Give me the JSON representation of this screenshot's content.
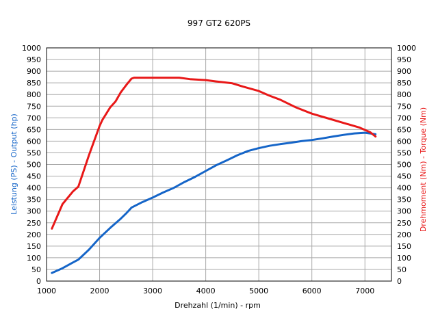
{
  "chart_data": {
    "type": "line",
    "title": "997 GT2 620PS",
    "xlabel": "Drehzahl (1/min) - rpm",
    "ylabel_left": "Leistung (PS) - Output (hp)",
    "ylabel_right": "Drehmoment (Nm) - Torque (Nm)",
    "xlim": [
      1000,
      7500
    ],
    "ylim": [
      0,
      1000
    ],
    "x_ticks": [
      1000,
      2000,
      3000,
      4000,
      5000,
      6000,
      7000
    ],
    "y_ticks": [
      0,
      50,
      100,
      150,
      200,
      250,
      300,
      350,
      400,
      450,
      500,
      550,
      600,
      650,
      700,
      750,
      800,
      850,
      900,
      950,
      1000
    ],
    "grid": true,
    "legend": "none",
    "series": [
      {
        "key": "power",
        "color": "#1565c8",
        "x": [
          1100,
          1300,
          1500,
          1600,
          1800,
          2000,
          2200,
          2400,
          2500,
          2600,
          2800,
          3000,
          3200,
          3400,
          3600,
          3800,
          4000,
          4200,
          4400,
          4600,
          4800,
          5000,
          5200,
          5400,
          5600,
          5800,
          6000,
          6200,
          6400,
          6600,
          6800,
          7000,
          7200
        ],
        "values": [
          35,
          55,
          80,
          92,
          135,
          185,
          228,
          268,
          290,
          315,
          338,
          358,
          380,
          400,
          425,
          447,
          472,
          497,
          518,
          540,
          558,
          570,
          580,
          587,
          593,
          600,
          605,
          612,
          620,
          627,
          633,
          636,
          630
        ]
      },
      {
        "key": "torque",
        "color": "#e81818",
        "x": [
          1100,
          1300,
          1500,
          1600,
          1800,
          2000,
          2050,
          2200,
          2300,
          2400,
          2500,
          2600,
          2650,
          3000,
          3500,
          3700,
          4000,
          4200,
          4500,
          4700,
          5000,
          5200,
          5400,
          5700,
          6000,
          6300,
          6600,
          6900,
          7100,
          7200
        ],
        "values": [
          225,
          330,
          385,
          405,
          540,
          665,
          690,
          745,
          770,
          810,
          840,
          868,
          872,
          872,
          872,
          866,
          862,
          856,
          848,
          834,
          815,
          795,
          778,
          745,
          718,
          698,
          678,
          658,
          638,
          620
        ]
      }
    ]
  }
}
